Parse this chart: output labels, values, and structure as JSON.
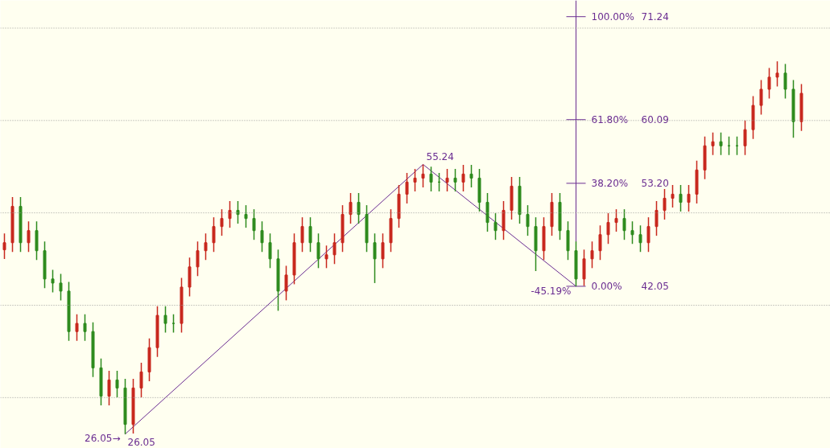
{
  "chart_data": {
    "type": "candlestick",
    "categories": [
      null,
      null,
      null,
      null,
      null,
      null,
      null,
      null,
      null,
      null,
      null,
      null,
      null,
      null,
      null,
      null,
      null,
      null,
      null,
      null,
      null,
      null,
      null,
      null,
      null,
      null,
      null,
      null,
      null,
      null,
      null,
      null,
      null,
      null,
      null,
      null,
      null,
      null,
      null,
      null,
      null,
      null,
      null,
      null,
      null,
      null,
      null,
      null,
      null,
      null,
      null,
      null,
      null,
      null,
      null,
      null,
      null,
      null,
      null,
      null,
      null,
      null,
      null,
      null,
      null,
      null,
      null,
      null,
      null,
      null,
      null,
      null,
      null,
      null,
      null,
      null,
      null,
      null,
      null,
      null,
      null,
      null,
      null,
      null,
      null,
      null,
      null,
      null,
      null,
      null,
      null,
      null,
      null,
      null,
      null,
      null,
      null,
      null,
      null,
      null
    ],
    "ohlc": [
      [
        46.0,
        47.77,
        45.0,
        46.77
      ],
      [
        46.77,
        51.7,
        45.77,
        50.7
      ],
      [
        50.7,
        51.7,
        45.77,
        46.77
      ],
      [
        46.77,
        49.08,
        45.77,
        48.08
      ],
      [
        48.08,
        49.08,
        44.9,
        45.9
      ],
      [
        45.9,
        46.9,
        41.84,
        42.84
      ],
      [
        42.84,
        43.84,
        41.4,
        42.4
      ],
      [
        42.4,
        43.4,
        40.53,
        41.53
      ],
      [
        41.53,
        42.53,
        36.15,
        37.15
      ],
      [
        37.15,
        39.03,
        36.15,
        38.03
      ],
      [
        38.03,
        39.03,
        36.15,
        37.15
      ],
      [
        37.15,
        38.15,
        32.22,
        33.22
      ],
      [
        33.22,
        34.22,
        29.16,
        30.16
      ],
      [
        30.16,
        32.91,
        29.16,
        31.91
      ],
      [
        31.91,
        32.91,
        30.04,
        31.04
      ],
      [
        31.04,
        32.04,
        26.05,
        27.1
      ],
      [
        27.1,
        32.04,
        26.1,
        31.04
      ],
      [
        31.04,
        33.78,
        30.04,
        32.78
      ],
      [
        32.78,
        36.41,
        31.78,
        35.41
      ],
      [
        35.41,
        39.9,
        34.41,
        38.9
      ],
      [
        38.9,
        39.9,
        37.03,
        38.03
      ],
      [
        38.03,
        39.03,
        37.03,
        38.03
      ],
      [
        38.03,
        42.96,
        37.03,
        41.96
      ],
      [
        41.96,
        45.15,
        40.96,
        44.15
      ],
      [
        44.15,
        46.9,
        43.15,
        45.9
      ],
      [
        45.9,
        47.77,
        44.9,
        46.77
      ],
      [
        46.77,
        49.52,
        45.77,
        48.52
      ],
      [
        48.52,
        50.39,
        47.52,
        49.39
      ],
      [
        49.39,
        51.27,
        48.39,
        50.27
      ],
      [
        50.27,
        51.27,
        48.83,
        49.83
      ],
      [
        49.83,
        50.83,
        48.39,
        49.39
      ],
      [
        49.39,
        50.39,
        47.08,
        48.08
      ],
      [
        48.08,
        49.08,
        45.77,
        46.77
      ],
      [
        46.77,
        47.77,
        44.02,
        45.02
      ],
      [
        45.02,
        46.02,
        39.4,
        41.53
      ],
      [
        41.53,
        44.27,
        40.53,
        43.27
      ],
      [
        43.27,
        47.77,
        42.27,
        46.77
      ],
      [
        46.77,
        49.52,
        45.77,
        48.52
      ],
      [
        48.52,
        49.52,
        45.77,
        46.77
      ],
      [
        46.77,
        47.77,
        44.02,
        45.02
      ],
      [
        45.02,
        46.46,
        44.02,
        45.46
      ],
      [
        45.46,
        47.77,
        44.46,
        46.77
      ],
      [
        46.77,
        50.83,
        45.77,
        49.83
      ],
      [
        49.83,
        52.14,
        48.83,
        51.14
      ],
      [
        51.14,
        52.14,
        48.83,
        49.83
      ],
      [
        49.83,
        50.83,
        45.77,
        46.77
      ],
      [
        46.77,
        47.77,
        42.4,
        45.02
      ],
      [
        45.02,
        47.77,
        44.02,
        46.77
      ],
      [
        46.77,
        50.39,
        45.77,
        49.39
      ],
      [
        49.39,
        53.02,
        48.39,
        52.02
      ],
      [
        52.02,
        54.33,
        51.02,
        53.33
      ],
      [
        53.33,
        54.76,
        52.33,
        53.76
      ],
      [
        53.76,
        55.24,
        52.76,
        54.2
      ],
      [
        54.2,
        55.0,
        52.33,
        53.33
      ],
      [
        53.33,
        54.33,
        52.33,
        53.33
      ],
      [
        53.33,
        54.76,
        52.33,
        53.76
      ],
      [
        53.76,
        54.76,
        52.33,
        53.33
      ],
      [
        53.33,
        55.2,
        52.33,
        54.2
      ],
      [
        54.2,
        55.2,
        52.76,
        53.76
      ],
      [
        53.76,
        54.76,
        50.14,
        51.14
      ],
      [
        51.14,
        52.14,
        47.96,
        48.96
      ],
      [
        48.96,
        49.96,
        47.08,
        48.08
      ],
      [
        48.08,
        51.27,
        47.08,
        50.27
      ],
      [
        50.27,
        53.89,
        49.27,
        52.89
      ],
      [
        52.89,
        53.89,
        48.83,
        49.83
      ],
      [
        49.83,
        50.83,
        47.52,
        48.52
      ],
      [
        48.52,
        49.52,
        43.7,
        45.9
      ],
      [
        45.9,
        49.52,
        44.9,
        48.52
      ],
      [
        48.52,
        52.14,
        47.52,
        51.14
      ],
      [
        51.14,
        52.14,
        47.08,
        48.08
      ],
      [
        48.08,
        49.08,
        44.9,
        45.9
      ],
      [
        45.9,
        46.9,
        42.05,
        42.84
      ],
      [
        42.84,
        46.02,
        42.1,
        45.02
      ],
      [
        45.02,
        46.9,
        44.02,
        45.9
      ],
      [
        45.9,
        48.64,
        44.9,
        47.64
      ],
      [
        47.64,
        49.96,
        46.64,
        48.96
      ],
      [
        48.96,
        50.39,
        47.96,
        49.39
      ],
      [
        49.39,
        50.39,
        47.08,
        48.08
      ],
      [
        48.08,
        49.08,
        46.64,
        47.64
      ],
      [
        47.64,
        48.64,
        45.77,
        46.77
      ],
      [
        46.77,
        49.52,
        45.77,
        48.52
      ],
      [
        48.52,
        51.27,
        47.52,
        50.27
      ],
      [
        50.27,
        52.58,
        49.27,
        51.58
      ],
      [
        51.58,
        53.02,
        50.58,
        52.02
      ],
      [
        52.02,
        53.02,
        50.14,
        51.14
      ],
      [
        51.14,
        53.02,
        50.14,
        52.02
      ],
      [
        52.02,
        55.64,
        51.02,
        54.64
      ],
      [
        54.64,
        58.26,
        53.64,
        57.26
      ],
      [
        57.26,
        58.7,
        56.26,
        57.7
      ],
      [
        57.7,
        58.7,
        56.26,
        57.26
      ],
      [
        57.26,
        58.26,
        56.26,
        57.26
      ],
      [
        57.26,
        58.26,
        56.26,
        57.26
      ],
      [
        57.26,
        60.01,
        56.26,
        59.01
      ],
      [
        59.01,
        62.63,
        58.01,
        61.63
      ],
      [
        61.63,
        64.38,
        60.63,
        63.38
      ],
      [
        63.38,
        65.69,
        62.38,
        64.69
      ],
      [
        64.69,
        66.4,
        63.69,
        65.13
      ],
      [
        65.13,
        66.13,
        62.38,
        63.38
      ],
      [
        63.38,
        64.38,
        58.13,
        59.88
      ],
      [
        59.88,
        63.94,
        58.88,
        62.94
      ]
    ],
    "colors": [
      "#c8281e",
      "#c8281e",
      "#2e8b1e",
      "#c8281e",
      "#2e8b1e",
      "#2e8b1e",
      "#2e8b1e",
      "#2e8b1e",
      "#2e8b1e",
      "#c8281e",
      "#2e8b1e",
      "#2e8b1e",
      "#2e8b1e",
      "#c8281e",
      "#2e8b1e",
      "#2e8b1e",
      "#c8281e",
      "#c8281e",
      "#c8281e",
      "#c8281e",
      "#2e8b1e",
      "#2e8b1e",
      "#c8281e",
      "#c8281e",
      "#c8281e",
      "#c8281e",
      "#c8281e",
      "#c8281e",
      "#c8281e",
      "#2e8b1e",
      "#2e8b1e",
      "#2e8b1e",
      "#2e8b1e",
      "#2e8b1e",
      "#2e8b1e",
      "#c8281e",
      "#c8281e",
      "#c8281e",
      "#2e8b1e",
      "#2e8b1e",
      "#c8281e",
      "#c8281e",
      "#c8281e",
      "#c8281e",
      "#2e8b1e",
      "#2e8b1e",
      "#2e8b1e",
      "#c8281e",
      "#c8281e",
      "#c8281e",
      "#c8281e",
      "#c8281e",
      "#c8281e",
      "#2e8b1e",
      "#2e8b1e",
      "#c8281e",
      "#2e8b1e",
      "#c8281e",
      "#2e8b1e",
      "#2e8b1e",
      "#2e8b1e",
      "#2e8b1e",
      "#c8281e",
      "#c8281e",
      "#2e8b1e",
      "#2e8b1e",
      "#2e8b1e",
      "#c8281e",
      "#c8281e",
      "#2e8b1e",
      "#2e8b1e",
      "#2e8b1e",
      "#c8281e",
      "#c8281e",
      "#c8281e",
      "#c8281e",
      "#c8281e",
      "#2e8b1e",
      "#2e8b1e",
      "#2e8b1e",
      "#c8281e",
      "#c8281e",
      "#c8281e",
      "#c8281e",
      "#2e8b1e",
      "#c8281e",
      "#c8281e",
      "#c8281e",
      "#c8281e",
      "#2e8b1e",
      "#2e8b1e",
      "#2e8b1e",
      "#c8281e",
      "#c8281e",
      "#c8281e",
      "#c8281e",
      "#c8281e",
      "#2e8b1e",
      "#2e8b1e",
      "#c8281e"
    ],
    "series": [
      {
        "type": "line",
        "color": "#6a2c91",
        "values": [
          null,
          null,
          null,
          null,
          null,
          null,
          null,
          null,
          null,
          null,
          null,
          null,
          null,
          null,
          null,
          26.05,
          null,
          null,
          null,
          null,
          null,
          null,
          null,
          null,
          null,
          null,
          null,
          null,
          null,
          null,
          null,
          null,
          null,
          null,
          null,
          null,
          null,
          null,
          null,
          null,
          null,
          null,
          null,
          null,
          null,
          null,
          null,
          null,
          null,
          null,
          null,
          null,
          55.24,
          null,
          null,
          null,
          null,
          null,
          null,
          null,
          null,
          null,
          null,
          null,
          null,
          null,
          null,
          null,
          null,
          null,
          null,
          42.05,
          null,
          null,
          null,
          null,
          null,
          null,
          null,
          null,
          null,
          null,
          null,
          null,
          null,
          null,
          null,
          null,
          null,
          null,
          null,
          null,
          null,
          null,
          null,
          null,
          null,
          null,
          null,
          null
        ]
      }
    ],
    "ref_lines": [
      {
        "axis": "y",
        "value": 30,
        "color": "#9a9a9a",
        "line_style": "dotted"
      },
      {
        "axis": "y",
        "value": 40,
        "color": "#9a9a9a",
        "line_style": "dotted"
      },
      {
        "axis": "y",
        "value": 50,
        "color": "#9a9a9a",
        "line_style": "dotted"
      },
      {
        "axis": "y",
        "value": 60,
        "color": "#9a9a9a",
        "line_style": "dotted"
      },
      {
        "axis": "y",
        "value": 70,
        "color": "#9a9a9a",
        "line_style": "dotted"
      }
    ],
    "ylim": [
      24.5,
      73.0
    ],
    "yticks": [
      42.05,
      {
        "value": 53.2,
        "label": "53.20"
      },
      60.09,
      71.24
    ],
    "tick_labels": "y",
    "annotations": [
      "0.00%",
      "38.20%",
      "61.80%",
      "100.00%",
      "-45.19%",
      "26.05→",
      "26.05",
      "55.24"
    ]
  }
}
